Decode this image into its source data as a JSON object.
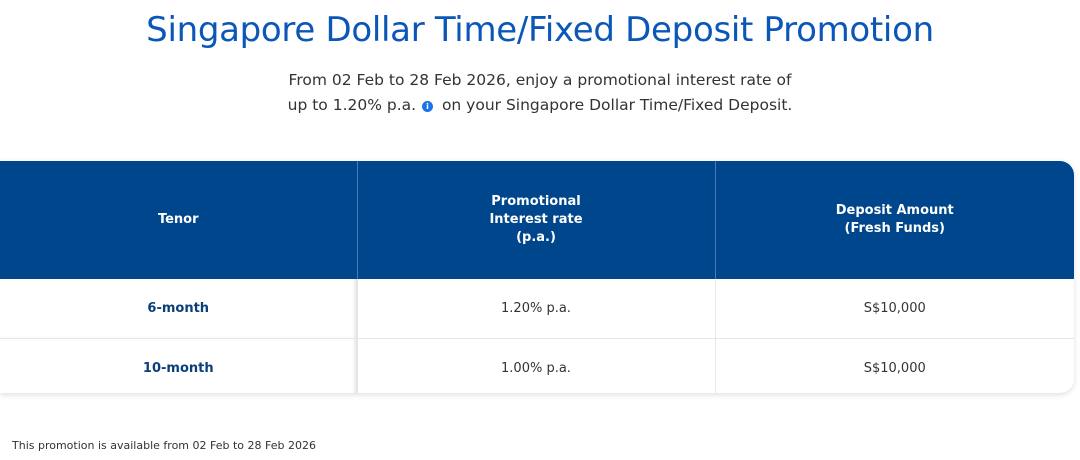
{
  "title": "Singapore Dollar Time/Fixed Deposit Promotion",
  "intro": {
    "line1": "From 02 Feb to 28 Feb 2026, enjoy a promotional interest rate of",
    "line2_before": "up to 1.20% p.a.",
    "info_icon": "info-icon",
    "line2_after": "on your Singapore Dollar Time/Fixed Deposit."
  },
  "table": {
    "headers": {
      "tenor": "Tenor",
      "rate_line1": "Promotional",
      "rate_line2": "Interest rate",
      "rate_line3": "(p.a.)",
      "amount_line1": "Deposit Amount",
      "amount_line2": "(Fresh Funds)"
    },
    "rows": [
      {
        "tenor": "6-month",
        "rate": "1.20% p.a.",
        "amount": "S$10,000"
      },
      {
        "tenor": "10-month",
        "rate": "1.00% p.a.",
        "amount": "S$10,000"
      }
    ]
  },
  "footnote": "This promotion is available from 02 Feb to 28 Feb 2026",
  "colors": {
    "title": "#0a57b8",
    "header_bg": "#00468c",
    "tenor_text": "#0a3f7a",
    "info_icon": "#1a73e8"
  }
}
